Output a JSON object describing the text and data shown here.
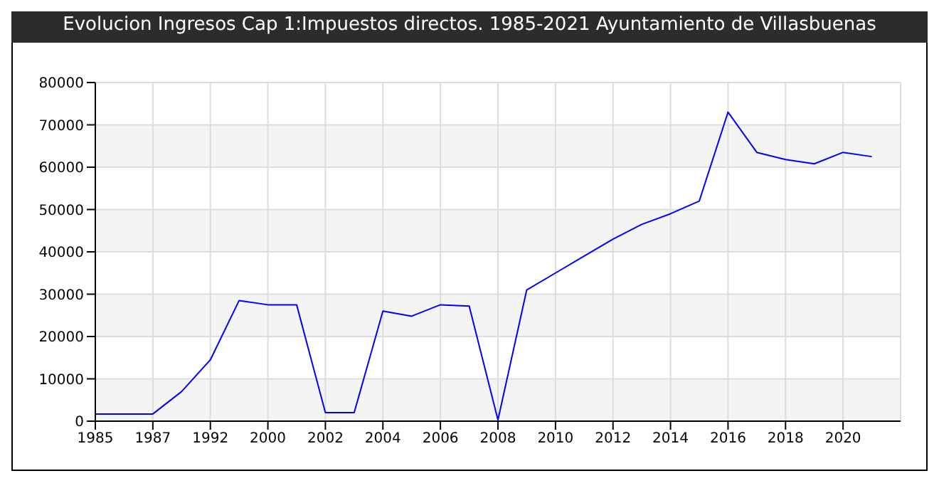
{
  "chart_data": {
    "type": "line",
    "title": "Evolucion Ingresos Cap 1:Impuestos directos. 1985-2021 Ayuntamiento de Villasbuenas",
    "categories": [
      "1985",
      null,
      "1987",
      null,
      "1992",
      null,
      "2000",
      null,
      "2002",
      null,
      "2004",
      null,
      "2006",
      null,
      "2008",
      null,
      "2010",
      null,
      "2012",
      null,
      "2014",
      null,
      "2016",
      null,
      "2018",
      null,
      "2020",
      null
    ],
    "series": [
      {
        "color": "#0000ff",
        "values": [
          1700,
          1700,
          1700,
          7000,
          14500,
          28500,
          27500,
          27500,
          2000,
          2000,
          26000,
          24800,
          27500,
          27200,
          300,
          31000,
          35000,
          39000,
          43000,
          46500,
          49000,
          52000,
          73000,
          63500,
          61800,
          60800,
          63500,
          62500
        ]
      }
    ],
    "ylim": [
      0,
      80000
    ],
    "yticks": [
      0,
      10000,
      20000,
      30000,
      40000,
      50000,
      60000,
      70000,
      80000
    ],
    "grid": true,
    "marker": "none",
    "line_style": "solid"
  }
}
